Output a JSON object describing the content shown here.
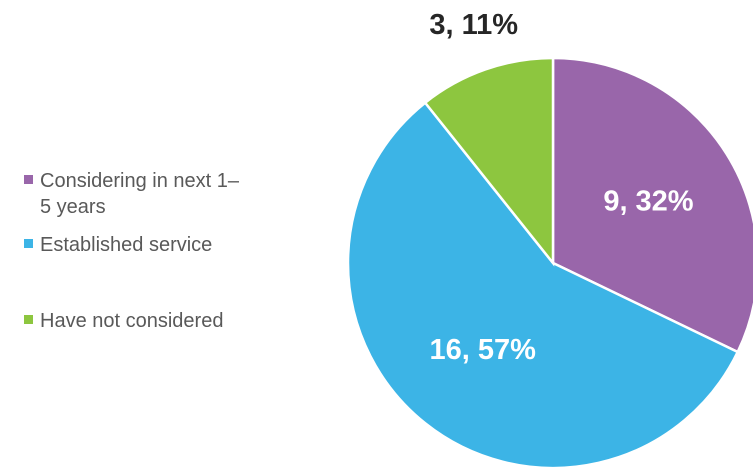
{
  "chart_data": {
    "type": "pie",
    "series": [
      {
        "name": "Considering in next 1–5 years",
        "color": "#9966aa",
        "values": [
          9
        ],
        "value_labels": [
          "9, 32%"
        ]
      },
      {
        "name": "Established service",
        "color": "#3cb4e6",
        "values": [
          16
        ],
        "value_labels": [
          "16, 57%"
        ]
      },
      {
        "name": "Have not considered",
        "color": "#8dc63f",
        "values": [
          3
        ],
        "value_labels": [
          "3, 11%"
        ]
      }
    ],
    "legend": "left"
  }
}
